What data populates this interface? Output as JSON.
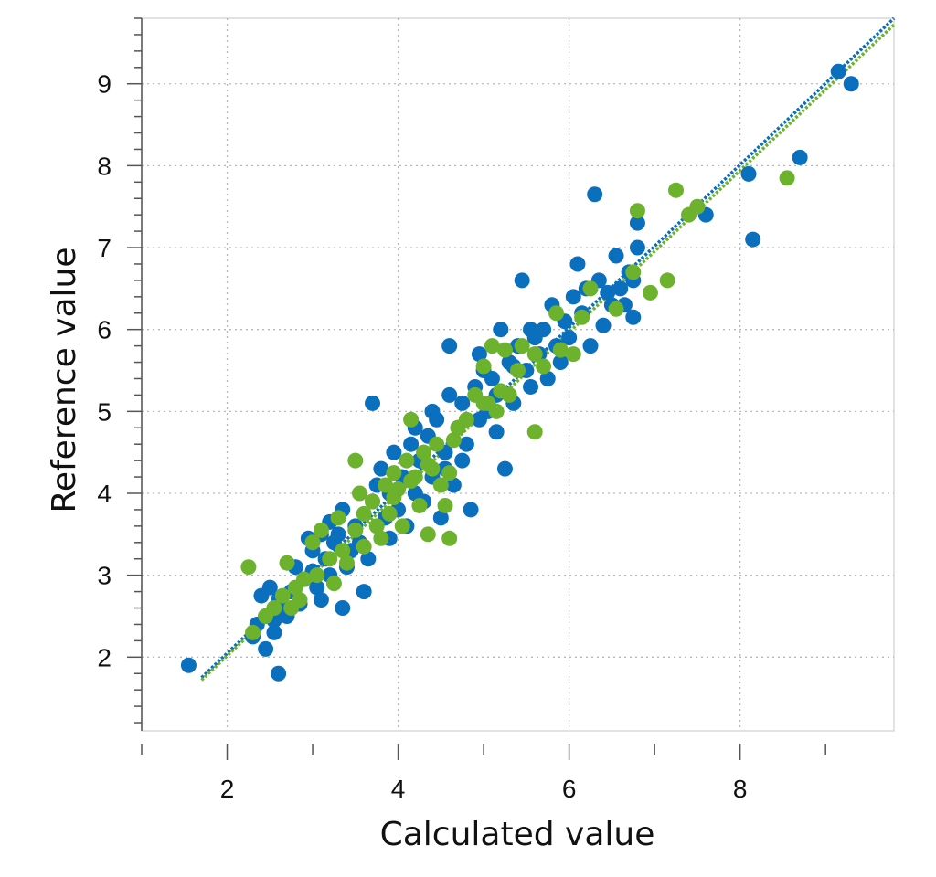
{
  "chart_data": {
    "type": "scatter",
    "title": "",
    "xlabel": "Calculated value",
    "ylabel": "Reference value",
    "xlim": [
      1.0,
      9.8
    ],
    "ylim": [
      1.1,
      9.8
    ],
    "x_ticks": [
      2,
      4,
      6,
      8
    ],
    "y_ticks": [
      2,
      3,
      4,
      5,
      6,
      7,
      8,
      9
    ],
    "x_tick_labels": [
      "2",
      "4",
      "6",
      "8"
    ],
    "y_tick_labels": [
      "2",
      "3",
      "4",
      "5",
      "6",
      "7",
      "8",
      "9"
    ],
    "grid": true,
    "legend": "none",
    "colors": {
      "blue": "#0a6fbd",
      "green": "#6db22d"
    },
    "series": [
      {
        "color": "#0a6fbd",
        "points": [
          [
            1.55,
            1.9
          ],
          [
            2.6,
            1.8
          ],
          [
            2.45,
            2.1
          ],
          [
            2.3,
            2.25
          ],
          [
            2.35,
            2.4
          ],
          [
            2.45,
            2.5
          ],
          [
            2.55,
            2.45
          ],
          [
            2.65,
            2.6
          ],
          [
            2.4,
            2.75
          ],
          [
            2.5,
            2.85
          ],
          [
            2.6,
            2.7
          ],
          [
            2.7,
            2.5
          ],
          [
            2.75,
            2.8
          ],
          [
            2.85,
            2.65
          ],
          [
            2.9,
            2.95
          ],
          [
            3.0,
            3.05
          ],
          [
            3.05,
            2.85
          ],
          [
            3.1,
            2.7
          ],
          [
            3.15,
            3.2
          ],
          [
            3.2,
            3.0
          ],
          [
            3.25,
            3.4
          ],
          [
            3.3,
            3.5
          ],
          [
            3.35,
            2.6
          ],
          [
            3.4,
            3.1
          ],
          [
            3.45,
            3.3
          ],
          [
            3.5,
            3.6
          ],
          [
            3.55,
            3.4
          ],
          [
            3.6,
            2.8
          ],
          [
            3.1,
            3.5
          ],
          [
            3.0,
            3.3
          ],
          [
            3.2,
            3.65
          ],
          [
            3.7,
            3.9
          ],
          [
            3.75,
            4.1
          ],
          [
            3.7,
            5.1
          ],
          [
            3.8,
            4.3
          ],
          [
            3.85,
            3.7
          ],
          [
            3.9,
            4.0
          ],
          [
            3.95,
            4.5
          ],
          [
            4.0,
            3.8
          ],
          [
            4.05,
            4.2
          ],
          [
            4.1,
            3.6
          ],
          [
            4.15,
            4.6
          ],
          [
            4.2,
            4.0
          ],
          [
            4.25,
            4.4
          ],
          [
            4.3,
            3.9
          ],
          [
            4.35,
            4.7
          ],
          [
            4.4,
            4.2
          ],
          [
            4.45,
            4.9
          ],
          [
            4.5,
            3.7
          ],
          [
            4.55,
            4.5
          ],
          [
            4.6,
            5.2
          ],
          [
            4.65,
            4.1
          ],
          [
            4.7,
            4.8
          ],
          [
            4.75,
            5.1
          ],
          [
            4.8,
            4.6
          ],
          [
            4.85,
            3.8
          ],
          [
            4.6,
            5.8
          ],
          [
            4.9,
            5.3
          ],
          [
            4.95,
            4.9
          ],
          [
            5.0,
            5.5
          ],
          [
            5.05,
            5.0
          ],
          [
            5.1,
            5.4
          ],
          [
            5.15,
            5.2
          ],
          [
            5.2,
            6.0
          ],
          [
            5.25,
            4.3
          ],
          [
            5.3,
            5.6
          ],
          [
            5.35,
            5.1
          ],
          [
            5.4,
            5.8
          ],
          [
            5.45,
            6.6
          ],
          [
            5.5,
            5.5
          ],
          [
            5.55,
            5.3
          ],
          [
            5.6,
            5.9
          ],
          [
            5.65,
            5.7
          ],
          [
            5.7,
            6.0
          ],
          [
            5.75,
            5.4
          ],
          [
            5.8,
            6.3
          ],
          [
            5.85,
            5.8
          ],
          [
            5.9,
            5.6
          ],
          [
            5.95,
            6.1
          ],
          [
            6.0,
            5.9
          ],
          [
            6.05,
            6.4
          ],
          [
            6.1,
            6.8
          ],
          [
            6.15,
            6.2
          ],
          [
            6.2,
            6.5
          ],
          [
            6.25,
            5.8
          ],
          [
            6.3,
            7.65
          ],
          [
            6.35,
            6.6
          ],
          [
            6.4,
            6.05
          ],
          [
            6.45,
            6.45
          ],
          [
            6.5,
            6.3
          ],
          [
            6.55,
            6.9
          ],
          [
            6.6,
            6.5
          ],
          [
            6.65,
            6.3
          ],
          [
            6.7,
            6.7
          ],
          [
            6.75,
            6.15
          ],
          [
            6.8,
            7.0
          ],
          [
            6.8,
            7.3
          ],
          [
            6.75,
            6.6
          ],
          [
            7.6,
            7.4
          ],
          [
            8.1,
            7.9
          ],
          [
            8.15,
            7.1
          ],
          [
            8.7,
            8.1
          ],
          [
            9.15,
            9.15
          ],
          [
            9.3,
            9.0
          ],
          [
            2.55,
            2.3
          ],
          [
            2.8,
            3.1
          ],
          [
            2.95,
            3.45
          ],
          [
            3.35,
            3.8
          ],
          [
            3.65,
            3.2
          ],
          [
            3.9,
            3.45
          ],
          [
            4.2,
            4.8
          ],
          [
            4.4,
            5.0
          ],
          [
            4.55,
            4.3
          ],
          [
            4.75,
            4.4
          ],
          [
            4.95,
            5.7
          ],
          [
            5.15,
            4.75
          ],
          [
            5.35,
            5.55
          ],
          [
            5.55,
            6.0
          ]
        ]
      },
      {
        "color": "#6db22d",
        "points": [
          [
            2.25,
            3.1
          ],
          [
            2.3,
            2.3
          ],
          [
            2.45,
            2.5
          ],
          [
            2.55,
            2.6
          ],
          [
            2.65,
            2.75
          ],
          [
            2.7,
            3.15
          ],
          [
            2.75,
            2.6
          ],
          [
            2.8,
            2.85
          ],
          [
            2.85,
            2.7
          ],
          [
            2.9,
            2.95
          ],
          [
            3.0,
            3.4
          ],
          [
            3.05,
            3.0
          ],
          [
            3.1,
            3.55
          ],
          [
            3.2,
            3.2
          ],
          [
            3.3,
            3.7
          ],
          [
            3.35,
            3.3
          ],
          [
            3.4,
            3.15
          ],
          [
            3.5,
            3.55
          ],
          [
            3.55,
            4.0
          ],
          [
            3.5,
            4.4
          ],
          [
            3.6,
            3.35
          ],
          [
            3.7,
            3.9
          ],
          [
            3.75,
            3.6
          ],
          [
            3.8,
            3.45
          ],
          [
            3.85,
            4.1
          ],
          [
            3.9,
            3.75
          ],
          [
            3.95,
            4.25
          ],
          [
            4.0,
            4.05
          ],
          [
            4.05,
            3.6
          ],
          [
            4.1,
            4.4
          ],
          [
            4.15,
            4.9
          ],
          [
            4.2,
            4.2
          ],
          [
            4.25,
            3.85
          ],
          [
            4.3,
            4.5
          ],
          [
            4.35,
            3.5
          ],
          [
            4.4,
            4.3
          ],
          [
            4.45,
            4.6
          ],
          [
            4.5,
            4.1
          ],
          [
            4.55,
            3.85
          ],
          [
            4.6,
            3.45
          ],
          [
            4.6,
            4.25
          ],
          [
            4.7,
            4.8
          ],
          [
            4.8,
            4.9
          ],
          [
            4.9,
            5.2
          ],
          [
            5.0,
            5.55
          ],
          [
            5.05,
            5.1
          ],
          [
            5.1,
            5.8
          ],
          [
            5.15,
            5.0
          ],
          [
            5.2,
            5.25
          ],
          [
            5.25,
            5.75
          ],
          [
            5.3,
            5.2
          ],
          [
            5.4,
            5.5
          ],
          [
            5.45,
            5.8
          ],
          [
            5.6,
            5.7
          ],
          [
            5.6,
            4.75
          ],
          [
            5.7,
            5.55
          ],
          [
            5.85,
            6.2
          ],
          [
            5.9,
            5.75
          ],
          [
            6.05,
            5.7
          ],
          [
            6.15,
            6.15
          ],
          [
            6.25,
            6.5
          ],
          [
            6.55,
            6.25
          ],
          [
            6.75,
            6.7
          ],
          [
            6.8,
            7.45
          ],
          [
            6.95,
            6.45
          ],
          [
            7.15,
            6.6
          ],
          [
            7.25,
            7.7
          ],
          [
            7.4,
            7.4
          ],
          [
            7.5,
            7.5
          ],
          [
            8.55,
            7.85
          ],
          [
            3.25,
            2.9
          ],
          [
            3.6,
            3.75
          ],
          [
            3.95,
            3.95
          ],
          [
            4.15,
            4.15
          ],
          [
            4.35,
            4.35
          ],
          [
            4.65,
            4.65
          ],
          [
            5.0,
            5.1
          ]
        ]
      }
    ],
    "fit_lines": [
      {
        "color": "#0a6fbd",
        "x": [
          1.7,
          9.8
        ],
        "y": [
          1.75,
          9.8
        ]
      },
      {
        "color": "#6db22d",
        "x": [
          1.7,
          9.8
        ],
        "y": [
          1.72,
          9.72
        ]
      }
    ]
  }
}
